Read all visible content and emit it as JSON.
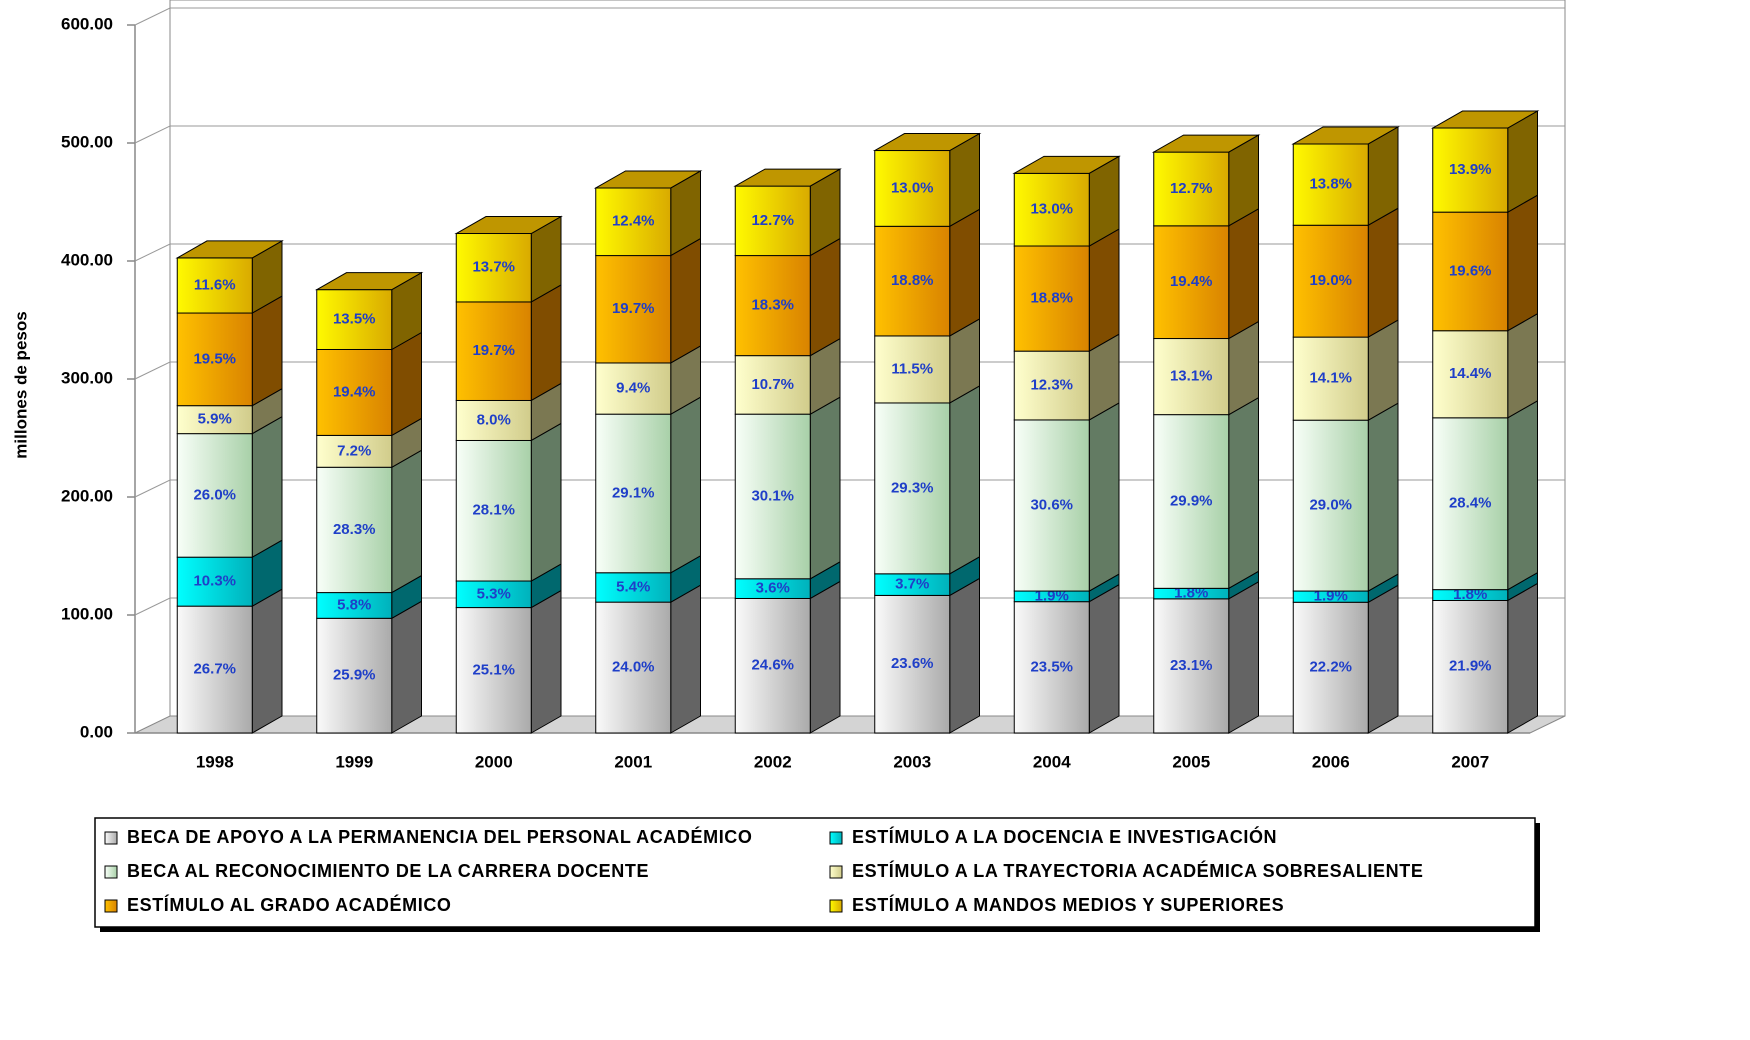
{
  "chart_data": {
    "type": "bar3d_stacked",
    "y_axis_label": "millones de pesos",
    "categories": [
      "1998",
      "1999",
      "2000",
      "2001",
      "2002",
      "2003",
      "2004",
      "2005",
      "2006",
      "2007"
    ],
    "ylim": [
      0,
      600
    ],
    "yticks": [
      {
        "value": 0,
        "label": "0.00"
      },
      {
        "value": 100,
        "label": "100.00"
      },
      {
        "value": 200,
        "label": "200.00"
      },
      {
        "value": 300,
        "label": "300.00"
      },
      {
        "value": 400,
        "label": "400.00"
      },
      {
        "value": 500,
        "label": "500.00"
      },
      {
        "value": 600,
        "label": "600.00"
      }
    ],
    "grid": true,
    "legend_position": "bottom",
    "series": [
      {
        "name": "BECA DE APOYO A LA PERMANENCIA DEL PERSONAL ACADÉMICO",
        "color": "#c8c8c8",
        "values": [
          107.5,
          97.2,
          106.3,
          110.9,
          114.0,
          116.6,
          111.3,
          113.7,
          110.8,
          112.3
        ],
        "share_labels": [
          "26.7%",
          "25.9%",
          "25.1%",
          "24.0%",
          "24.6%",
          "23.6%",
          "23.5%",
          "23.1%",
          "22.2%",
          "21.9%"
        ]
      },
      {
        "name": "ESTÍMULO A LA DOCENCIA E INVESTIGACIÓN",
        "color": "#00d0dc",
        "values": [
          41.5,
          21.8,
          22.5,
          24.9,
          16.7,
          18.3,
          9.0,
          8.9,
          9.5,
          9.2
        ],
        "share_labels": [
          "10.3%",
          "5.8%",
          "5.3%",
          "5.4%",
          "3.6%",
          "3.7%",
          "1.9%",
          "1.8%",
          "1.9%",
          "1.8%"
        ]
      },
      {
        "name": "BECA AL RECONOCIMIENTO DE LA CARRERA DOCENTE",
        "color": "#c6f5c6",
        "values": [
          104.7,
          106.2,
          119.1,
          134.4,
          139.5,
          144.8,
          145.0,
          147.2,
          144.8,
          145.6
        ],
        "share_labels": [
          "26.0%",
          "28.3%",
          "28.1%",
          "29.1%",
          "30.1%",
          "29.3%",
          "30.6%",
          "29.9%",
          "29.0%",
          "28.4%"
        ]
      },
      {
        "name": "ESTÍMULO A LA TRAYECTORIA ACADÉMICA SOBRESALIENTE",
        "color": "#f6f0a4",
        "values": [
          23.7,
          27.0,
          33.9,
          43.4,
          49.6,
          56.8,
          58.3,
          64.5,
          70.4,
          73.8
        ],
        "share_labels": [
          "5.9%",
          "7.2%",
          "8.0%",
          "9.4%",
          "10.7%",
          "11.5%",
          "12.3%",
          "13.1%",
          "14.1%",
          "14.4%"
        ]
      },
      {
        "name": "ESTÍMULO AL GRADO ACADÉMICO",
        "color": "#ff9a00",
        "values": [
          78.5,
          72.8,
          83.5,
          91.0,
          84.8,
          92.9,
          89.1,
          95.5,
          94.8,
          100.5
        ],
        "share_labels": [
          "19.5%",
          "19.4%",
          "19.7%",
          "19.7%",
          "18.3%",
          "18.8%",
          "18.8%",
          "19.4%",
          "19.0%",
          "19.6%"
        ]
      },
      {
        "name": "ESTÍMULO A MANDOS MEDIOS Y SUPERIORES",
        "color": "#ffc800",
        "values": [
          46.7,
          50.7,
          58.0,
          57.3,
          58.9,
          64.2,
          61.6,
          62.5,
          68.9,
          71.3
        ],
        "share_labels": [
          "11.6%",
          "13.5%",
          "13.7%",
          "12.4%",
          "12.7%",
          "13.0%",
          "13.0%",
          "12.7%",
          "13.8%",
          "13.9%"
        ]
      }
    ]
  }
}
